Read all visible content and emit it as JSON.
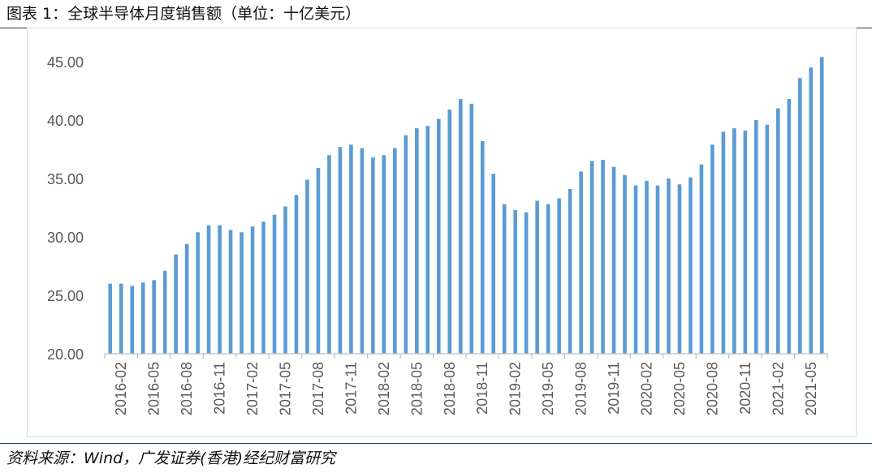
{
  "title": "图表 1：全球半导体月度销售额（单位：十亿美元）",
  "source": "资料来源：Wind，广发证券(香港)经纪财富研究",
  "colors": {
    "bar": "#5b9bd5",
    "axis": "#bfbfbf",
    "tick_text": "#595959",
    "rule": "#1f3a5c"
  },
  "chart_data": {
    "type": "bar",
    "title": "",
    "xlabel": "",
    "ylabel": "",
    "ylim": [
      20,
      45
    ],
    "y_ticks": [
      "20.00",
      "25.00",
      "30.00",
      "35.00",
      "40.00",
      "45.00"
    ],
    "x_tick_labels": [
      "2016-02",
      "2016-05",
      "2016-08",
      "2016-11",
      "2017-02",
      "2017-05",
      "2017-08",
      "2017-11",
      "2018-02",
      "2018-05",
      "2018-08",
      "2018-11",
      "2019-02",
      "2019-05",
      "2019-08",
      "2019-11",
      "2020-02",
      "2020-05",
      "2020-08",
      "2020-11",
      "2021-02",
      "2021-05"
    ],
    "categories": [
      "2016-02",
      "2016-03",
      "2016-04",
      "2016-05",
      "2016-06",
      "2016-07",
      "2016-08",
      "2016-09",
      "2016-10",
      "2016-11",
      "2016-12",
      "2017-01",
      "2017-02",
      "2017-03",
      "2017-04",
      "2017-05",
      "2017-06",
      "2017-07",
      "2017-08",
      "2017-09",
      "2017-10",
      "2017-11",
      "2017-12",
      "2018-01",
      "2018-02",
      "2018-03",
      "2018-04",
      "2018-05",
      "2018-06",
      "2018-07",
      "2018-08",
      "2018-09",
      "2018-10",
      "2018-11",
      "2018-12",
      "2019-01",
      "2019-02",
      "2019-03",
      "2019-04",
      "2019-05",
      "2019-06",
      "2019-07",
      "2019-08",
      "2019-09",
      "2019-10",
      "2019-11",
      "2019-12",
      "2020-01",
      "2020-02",
      "2020-03",
      "2020-04",
      "2020-05",
      "2020-06",
      "2020-07",
      "2020-08",
      "2020-09",
      "2020-10",
      "2020-11",
      "2020-12",
      "2021-01",
      "2021-02",
      "2021-03",
      "2021-04",
      "2021-05",
      "2021-06",
      "2021-07"
    ],
    "values": [
      26.0,
      26.0,
      25.8,
      26.1,
      26.3,
      27.1,
      28.5,
      29.4,
      30.4,
      31.0,
      31.0,
      30.6,
      30.4,
      30.9,
      31.3,
      31.9,
      32.6,
      33.6,
      34.9,
      35.9,
      37.0,
      37.7,
      37.9,
      37.6,
      36.8,
      37.0,
      37.6,
      38.7,
      39.3,
      39.5,
      40.1,
      40.9,
      41.8,
      41.4,
      38.2,
      35.4,
      32.8,
      32.3,
      32.1,
      33.1,
      32.8,
      33.3,
      34.1,
      35.6,
      36.5,
      36.6,
      36.0,
      35.3,
      34.4,
      34.8,
      34.4,
      35.0,
      34.5,
      35.1,
      36.2,
      37.9,
      39.0,
      39.3,
      39.1,
      40.0,
      39.6,
      41.0,
      41.8,
      43.6,
      44.5,
      45.4
    ]
  }
}
